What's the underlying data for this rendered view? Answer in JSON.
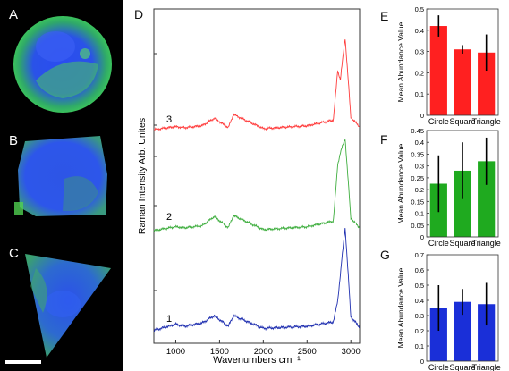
{
  "cells": {
    "labels": [
      "A",
      "B",
      "C"
    ]
  },
  "spectra_panel": {
    "label": "D",
    "xlabel": "Wavenumbers cm⁻¹",
    "ylabel": "Raman Intensity Arb. Unites",
    "xticks": [
      "1000",
      "1500",
      "2000",
      "2500",
      "3000"
    ],
    "spectrum_labels": [
      "3",
      "2",
      "1"
    ],
    "colors": [
      "#ff3b3b",
      "#3fae3f",
      "#1f2fb0"
    ]
  },
  "chart_data": [
    {
      "type": "line",
      "title": "",
      "xlabel": "Wavenumbers cm⁻¹",
      "ylabel": "Raman Intensity Arb. Unites",
      "xlim": [
        750,
        3100
      ],
      "series": [
        {
          "name": "3",
          "color": "#ff3b3b",
          "x": [
            750,
            1000,
            1100,
            1300,
            1440,
            1600,
            1660,
            2000,
            2500,
            2800,
            2850,
            2880,
            2935,
            3000,
            3100
          ],
          "y": [
            0.02,
            0.05,
            0.04,
            0.06,
            0.14,
            0.04,
            0.18,
            0.03,
            0.06,
            0.12,
            0.65,
            0.55,
            1.0,
            0.15,
            0.05
          ]
        },
        {
          "name": "2",
          "color": "#3fae3f",
          "x": [
            750,
            1000,
            1100,
            1300,
            1440,
            1600,
            1660,
            2000,
            2500,
            2800,
            2850,
            2880,
            2935,
            3000,
            3100
          ],
          "y": [
            0.02,
            0.06,
            0.05,
            0.07,
            0.17,
            0.05,
            0.18,
            0.03,
            0.06,
            0.12,
            0.72,
            0.85,
            1.0,
            0.15,
            0.05
          ]
        },
        {
          "name": "1",
          "color": "#1f2fb0",
          "x": [
            750,
            1000,
            1100,
            1300,
            1440,
            1600,
            1660,
            2000,
            2500,
            2800,
            2850,
            2880,
            2935,
            3000,
            3100
          ],
          "y": [
            0.02,
            0.08,
            0.06,
            0.09,
            0.16,
            0.06,
            0.16,
            0.04,
            0.06,
            0.1,
            0.3,
            0.55,
            1.0,
            0.15,
            0.05
          ]
        }
      ]
    },
    {
      "type": "bar",
      "label": "E",
      "color": "#ff2020",
      "categories": [
        "Circle",
        "Square",
        "Triangle"
      ],
      "values": [
        0.42,
        0.31,
        0.295
      ],
      "errors": [
        0.05,
        0.02,
        0.085
      ],
      "ylabel": "Mean Abundance Value",
      "ylim": [
        0,
        0.5
      ],
      "yticks": [
        "0",
        "0.1",
        "0.2",
        "0.3",
        "0.4",
        "0.5"
      ]
    },
    {
      "type": "bar",
      "label": "F",
      "color": "#1faa1f",
      "categories": [
        "Circle",
        "Square",
        "Triangle"
      ],
      "values": [
        0.225,
        0.28,
        0.32
      ],
      "errors": [
        0.12,
        0.12,
        0.1
      ],
      "ylabel": "Mean Abundance Value",
      "ylim": [
        0,
        0.45
      ],
      "yticks": [
        "0",
        "0.05",
        "0.1",
        "0.15",
        "0.2",
        "0.25",
        "0.3",
        "0.35",
        "0.4",
        "0.45"
      ]
    },
    {
      "type": "bar",
      "label": "G",
      "color": "#1a2fd8",
      "categories": [
        "Circle",
        "Square",
        "Triangle"
      ],
      "values": [
        0.35,
        0.39,
        0.375
      ],
      "errors": [
        0.15,
        0.085,
        0.14
      ],
      "ylabel": "Mean Abundance Value",
      "ylim": [
        0,
        0.7
      ],
      "yticks": [
        "0",
        "0.1",
        "0.2",
        "0.3",
        "0.4",
        "0.5",
        "0.6",
        "0.7"
      ]
    }
  ]
}
